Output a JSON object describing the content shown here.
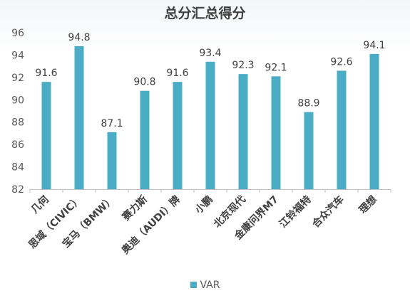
{
  "chart_data": {
    "type": "bar",
    "title": "总分汇总得分",
    "categories": [
      "几何",
      "思域（CIVIC）",
      "宝马（BMW）",
      "赛力斯",
      "奥迪（AUDI）牌",
      "小鹏",
      "北京现代",
      "金康问界M7",
      "江铃福特",
      "合众汽车",
      "理想"
    ],
    "series": [
      {
        "name": "VAR",
        "values": [
          91.6,
          94.8,
          87.1,
          90.8,
          91.6,
          93.4,
          92.3,
          92.1,
          88.9,
          92.6,
          94.1
        ]
      }
    ],
    "data_labels": [
      "91.6",
      "94.8",
      "87.1",
      "90.8",
      "91.6",
      "93.4",
      "92.3",
      "92.1",
      "88.9",
      "92.6",
      "94.1"
    ],
    "ylim": [
      82,
      96
    ],
    "yticks": [
      82,
      84,
      86,
      88,
      90,
      92,
      94,
      96
    ],
    "xlabel": "",
    "ylabel": "",
    "grid": false,
    "legend_position": "bottom",
    "bar_color": "#4bacc6"
  }
}
